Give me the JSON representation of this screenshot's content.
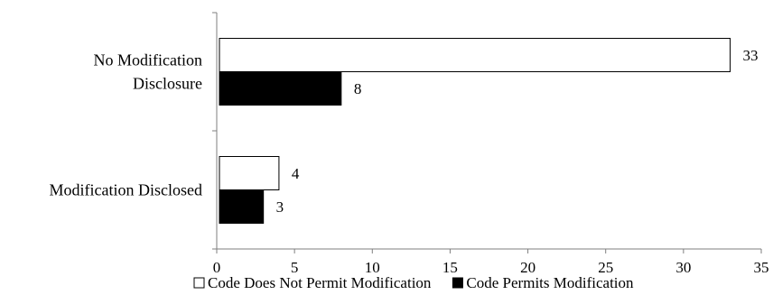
{
  "chart_data": {
    "type": "bar",
    "orientation": "horizontal",
    "title": "",
    "xlabel": "",
    "ylabel": "",
    "categories": [
      [
        "No Modification",
        "Disclosure"
      ],
      [
        "Modification Disclosed"
      ]
    ],
    "series": [
      {
        "name": "Code Does Not Permit Modification",
        "values": [
          33,
          4
        ],
        "color": "#ffffff",
        "stroke": "#000000"
      },
      {
        "name": "Code Permits Modification",
        "values": [
          8,
          3
        ],
        "color": "#000000",
        "stroke": "#000000"
      }
    ],
    "xlim": [
      0,
      35
    ],
    "xticks": [
      0,
      5,
      10,
      15,
      20,
      25,
      30,
      35
    ],
    "grid": false,
    "legend_position": "bottom"
  }
}
